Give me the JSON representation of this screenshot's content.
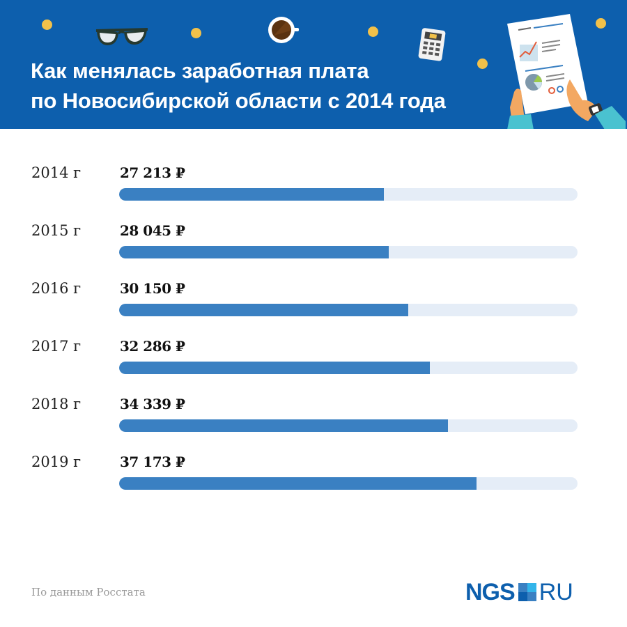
{
  "header": {
    "title_line1": "Как менялась заработная плата",
    "title_line2": "по Новосибирской области с 2014 года",
    "background_color": "#0d5fad",
    "decorations": [
      "coin-icon",
      "glasses-icon",
      "coffee-cup-icon",
      "calculator-icon",
      "report-document-icon",
      "hands-icon"
    ]
  },
  "rows": [
    {
      "year": "2014 г",
      "value": "27 213 ₽",
      "fill_pct": 57.8
    },
    {
      "year": "2015 г",
      "value": "28 045 ₽",
      "fill_pct": 58.8
    },
    {
      "year": "2016 г",
      "value": "30 150 ₽",
      "fill_pct": 63.1
    },
    {
      "year": "2017 г",
      "value": "32 286 ₽",
      "fill_pct": 67.8
    },
    {
      "year": "2018 г",
      "value": "34 339 ₽",
      "fill_pct": 71.7
    },
    {
      "year": "2019 г",
      "value": "37 173 ₽",
      "fill_pct": 78.0
    }
  ],
  "footer": {
    "source": "По данным Росстата",
    "logo_left": "NGS",
    "logo_right": "RU"
  },
  "colors": {
    "bar_fill": "#3a80c2",
    "bar_track": "#e5edf7",
    "coin": "#f2c14a"
  },
  "chart_data": {
    "type": "bar",
    "orientation": "horizontal",
    "title": "Как менялась заработная плата по Новосибирской области с 2014 года",
    "categories": [
      "2014 г",
      "2015 г",
      "2016 г",
      "2017 г",
      "2018 г",
      "2019 г"
    ],
    "values": [
      27213,
      28045,
      30150,
      32286,
      34339,
      37173
    ],
    "unit": "₽",
    "xlabel": "",
    "ylabel": "",
    "source": "По данным Росстата",
    "grid": false,
    "legend": null
  }
}
